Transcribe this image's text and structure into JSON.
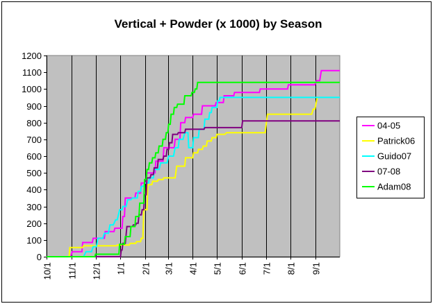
{
  "chart_data": {
    "type": "line",
    "title": "Vertical + Powder (x 1000) by Season",
    "xlabel": "",
    "ylabel": "",
    "ylim": [
      0,
      1200
    ],
    "yticks": [
      0,
      100,
      200,
      300,
      400,
      500,
      600,
      700,
      800,
      900,
      1000,
      1100,
      1200
    ],
    "x_tick_labels": [
      "10/1",
      "11/1",
      "12/1",
      "1/1",
      "2/1",
      "3/1",
      "4/1",
      "5/1",
      "6/1",
      "7/1",
      "8/1",
      "9/1"
    ],
    "x_tick_days": [
      0,
      31,
      61,
      92,
      123,
      151,
      182,
      212,
      243,
      273,
      304,
      335
    ],
    "xlim_days": [
      0,
      365
    ],
    "grid": "vertical",
    "plot_background": "#c0c0c0",
    "legend_position": "right",
    "series": [
      {
        "name": "04-05",
        "color": "#ff00ff",
        "points": [
          [
            0,
            0
          ],
          [
            30,
            0
          ],
          [
            32,
            30
          ],
          [
            44,
            30
          ],
          [
            45,
            85
          ],
          [
            57,
            85
          ],
          [
            58,
            110
          ],
          [
            72,
            110
          ],
          [
            73,
            150
          ],
          [
            84,
            150
          ],
          [
            85,
            170
          ],
          [
            94,
            170
          ],
          [
            95,
            240
          ],
          [
            97,
            240
          ],
          [
            98,
            350
          ],
          [
            110,
            350
          ],
          [
            111,
            380
          ],
          [
            117,
            380
          ],
          [
            118,
            440
          ],
          [
            124,
            440
          ],
          [
            125,
            500
          ],
          [
            135,
            500
          ],
          [
            136,
            570
          ],
          [
            145,
            570
          ],
          [
            146,
            650
          ],
          [
            159,
            650
          ],
          [
            160,
            700
          ],
          [
            166,
            700
          ],
          [
            167,
            800
          ],
          [
            172,
            800
          ],
          [
            173,
            830
          ],
          [
            182,
            830
          ],
          [
            183,
            850
          ],
          [
            193,
            850
          ],
          [
            194,
            900
          ],
          [
            210,
            900
          ],
          [
            211,
            920
          ],
          [
            220,
            920
          ],
          [
            221,
            960
          ],
          [
            233,
            960
          ],
          [
            234,
            980
          ],
          [
            265,
            980
          ],
          [
            266,
            1000
          ],
          [
            300,
            1000
          ],
          [
            301,
            1025
          ],
          [
            334,
            1025
          ],
          [
            336,
            1050
          ],
          [
            340,
            1050
          ],
          [
            342,
            1110
          ],
          [
            365,
            1110
          ]
        ]
      },
      {
        "name": "Patrick06",
        "color": "#ffff00",
        "points": [
          [
            0,
            0
          ],
          [
            28,
            0
          ],
          [
            29,
            55
          ],
          [
            45,
            55
          ],
          [
            46,
            65
          ],
          [
            87,
            65
          ],
          [
            88,
            70
          ],
          [
            103,
            70
          ],
          [
            104,
            80
          ],
          [
            111,
            80
          ],
          [
            112,
            90
          ],
          [
            117,
            90
          ],
          [
            118,
            110
          ],
          [
            120,
            110
          ],
          [
            121,
            280
          ],
          [
            125,
            280
          ],
          [
            126,
            430
          ],
          [
            131,
            430
          ],
          [
            132,
            450
          ],
          [
            138,
            450
          ],
          [
            139,
            460
          ],
          [
            145,
            460
          ],
          [
            146,
            470
          ],
          [
            160,
            470
          ],
          [
            162,
            540
          ],
          [
            172,
            540
          ],
          [
            173,
            590
          ],
          [
            182,
            590
          ],
          [
            183,
            620
          ],
          [
            188,
            620
          ],
          [
            189,
            640
          ],
          [
            194,
            640
          ],
          [
            195,
            660
          ],
          [
            199,
            660
          ],
          [
            200,
            690
          ],
          [
            205,
            690
          ],
          [
            206,
            710
          ],
          [
            211,
            710
          ],
          [
            212,
            730
          ],
          [
            222,
            730
          ],
          [
            224,
            740
          ],
          [
            272,
            740
          ],
          [
            275,
            850
          ],
          [
            330,
            850
          ],
          [
            332,
            880
          ],
          [
            334,
            880
          ],
          [
            337,
            950
          ]
        ]
      },
      {
        "name": "Guido07",
        "color": "#00ffff",
        "points": [
          [
            0,
            0
          ],
          [
            46,
            0
          ],
          [
            49,
            30
          ],
          [
            56,
            30
          ],
          [
            58,
            60
          ],
          [
            62,
            60
          ],
          [
            64,
            110
          ],
          [
            70,
            110
          ],
          [
            72,
            140
          ],
          [
            77,
            140
          ],
          [
            79,
            190
          ],
          [
            83,
            190
          ],
          [
            86,
            220
          ],
          [
            88,
            220
          ],
          [
            91,
            280
          ],
          [
            94,
            280
          ],
          [
            95,
            300
          ],
          [
            99,
            300
          ],
          [
            101,
            340
          ],
          [
            105,
            340
          ],
          [
            107,
            350
          ],
          [
            113,
            350
          ],
          [
            114,
            390
          ],
          [
            117,
            390
          ],
          [
            118,
            420
          ],
          [
            121,
            420
          ],
          [
            122,
            440
          ],
          [
            127,
            440
          ],
          [
            128,
            470
          ],
          [
            133,
            470
          ],
          [
            134,
            520
          ],
          [
            140,
            520
          ],
          [
            142,
            560
          ],
          [
            150,
            560
          ],
          [
            152,
            600
          ],
          [
            158,
            600
          ],
          [
            160,
            650
          ],
          [
            164,
            650
          ],
          [
            165,
            700
          ],
          [
            170,
            700
          ],
          [
            172,
            740
          ],
          [
            176,
            740
          ],
          [
            177,
            650
          ],
          [
            182,
            650
          ],
          [
            183,
            710
          ],
          [
            189,
            710
          ],
          [
            190,
            760
          ],
          [
            196,
            760
          ],
          [
            197,
            820
          ],
          [
            202,
            820
          ],
          [
            203,
            860
          ],
          [
            205,
            860
          ],
          [
            206,
            890
          ],
          [
            212,
            890
          ],
          [
            213,
            930
          ],
          [
            215,
            930
          ],
          [
            216,
            950
          ],
          [
            365,
            950
          ]
        ]
      },
      {
        "name": "07-08",
        "color": "#800080",
        "points": [
          [
            0,
            0
          ],
          [
            88,
            0
          ],
          [
            92,
            0
          ],
          [
            93,
            40
          ],
          [
            94,
            40
          ],
          [
            95,
            80
          ],
          [
            98,
            80
          ],
          [
            100,
            180
          ],
          [
            107,
            180
          ],
          [
            108,
            190
          ],
          [
            111,
            190
          ],
          [
            112,
            200
          ],
          [
            114,
            200
          ],
          [
            115,
            250
          ],
          [
            118,
            250
          ],
          [
            119,
            280
          ],
          [
            121,
            280
          ],
          [
            122,
            370
          ],
          [
            124,
            370
          ],
          [
            125,
            470
          ],
          [
            129,
            470
          ],
          [
            130,
            490
          ],
          [
            133,
            490
          ],
          [
            134,
            530
          ],
          [
            138,
            530
          ],
          [
            139,
            580
          ],
          [
            145,
            580
          ],
          [
            146,
            600
          ],
          [
            149,
            600
          ],
          [
            150,
            640
          ],
          [
            152,
            640
          ],
          [
            153,
            680
          ],
          [
            156,
            680
          ],
          [
            157,
            730
          ],
          [
            163,
            730
          ],
          [
            164,
            740
          ],
          [
            172,
            740
          ],
          [
            173,
            760
          ],
          [
            196,
            760
          ],
          [
            197,
            770
          ],
          [
            243,
            770
          ],
          [
            244,
            810
          ],
          [
            365,
            810
          ]
        ]
      },
      {
        "name": "Adam08",
        "color": "#00ff00",
        "points": [
          [
            0,
            0
          ],
          [
            60,
            0
          ],
          [
            61,
            15
          ],
          [
            90,
            15
          ],
          [
            91,
            75
          ],
          [
            97,
            75
          ],
          [
            98,
            120
          ],
          [
            104,
            120
          ],
          [
            105,
            180
          ],
          [
            110,
            180
          ],
          [
            111,
            240
          ],
          [
            115,
            240
          ],
          [
            116,
            320
          ],
          [
            121,
            320
          ],
          [
            122,
            460
          ],
          [
            124,
            460
          ],
          [
            125,
            520
          ],
          [
            127,
            520
          ],
          [
            128,
            560
          ],
          [
            131,
            560
          ],
          [
            132,
            590
          ],
          [
            135,
            590
          ],
          [
            136,
            620
          ],
          [
            139,
            620
          ],
          [
            140,
            660
          ],
          [
            144,
            660
          ],
          [
            145,
            700
          ],
          [
            148,
            700
          ],
          [
            149,
            740
          ],
          [
            151,
            740
          ],
          [
            152,
            790
          ],
          [
            154,
            790
          ],
          [
            155,
            850
          ],
          [
            158,
            850
          ],
          [
            159,
            890
          ],
          [
            162,
            890
          ],
          [
            163,
            910
          ],
          [
            171,
            910
          ],
          [
            172,
            960
          ],
          [
            180,
            960
          ],
          [
            181,
            980
          ],
          [
            184,
            980
          ],
          [
            185,
            1000
          ],
          [
            187,
            1000
          ],
          [
            188,
            1040
          ],
          [
            365,
            1040
          ]
        ]
      }
    ]
  }
}
